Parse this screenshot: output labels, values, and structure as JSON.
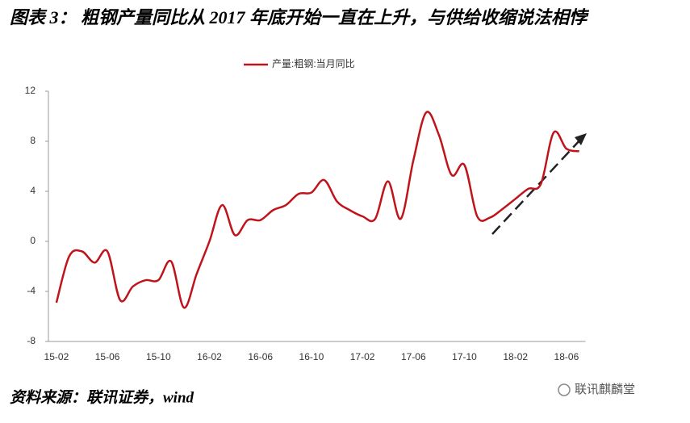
{
  "header": {
    "title": "图表 3： 粗钢产量同比从 2017 年底开始一直在上升，与供给收缩说法相悖"
  },
  "chart_data": {
    "type": "line",
    "categories": [
      "15-02",
      null,
      null,
      null,
      "15-06",
      null,
      null,
      null,
      "15-10",
      null,
      null,
      null,
      "16-02",
      null,
      null,
      null,
      "16-06",
      null,
      null,
      null,
      "16-10",
      null,
      null,
      null,
      "17-02",
      null,
      null,
      null,
      "17-06",
      null,
      null,
      null,
      "17-10",
      null,
      null,
      null,
      "18-02",
      null,
      null,
      null,
      "18-06",
      null
    ],
    "series": [
      {
        "name": "产量:粗钢:当月同比",
        "color": "#c0141c",
        "values": [
          -4.9,
          -1.2,
          -0.8,
          -1.7,
          -0.8,
          -4.7,
          -3.6,
          -3.1,
          -3.1,
          -1.6,
          -5.3,
          -2.6,
          0,
          2.9,
          0.5,
          1.7,
          1.7,
          2.5,
          2.9,
          3.8,
          3.9,
          4.9,
          3.2,
          2.5,
          2.0,
          1.8,
          4.8,
          1.8,
          6.5,
          10.3,
          8.5,
          5.3,
          6.1,
          2.0,
          1.9,
          2.6,
          3.4,
          4.2,
          4.6,
          8.7,
          7.4,
          7.2
        ]
      }
    ],
    "ylim": [
      -8,
      12
    ],
    "yticks": [
      -8,
      -4,
      0,
      4,
      8,
      12
    ],
    "grid": false,
    "legend": "top"
  },
  "footer": {
    "source": "资料来源：联讯证券，wind",
    "watermark": "联讯麒麟堂"
  }
}
